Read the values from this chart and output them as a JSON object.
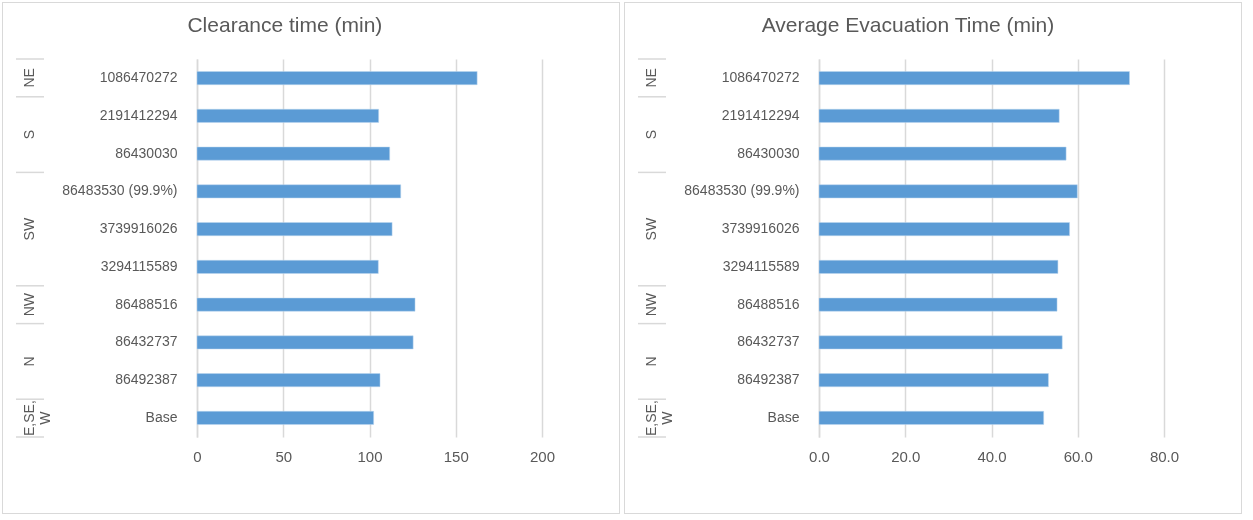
{
  "chart_data": [
    {
      "type": "bar",
      "orientation": "horizontal",
      "title": "Clearance time (min)",
      "categories": [
        "1086470272",
        "2191412294",
        "86430030",
        "86483530 (99.9%)",
        "3739916026",
        "3294115589",
        "86488516",
        "86432737",
        "86492387",
        "Base"
      ],
      "values": [
        162.4,
        105.3,
        111.7,
        118.1,
        113.1,
        105.1,
        126.4,
        125.3,
        106.1,
        102.4
      ],
      "color": "#5b9bd5",
      "xlim": [
        0,
        200
      ],
      "xticks": [
        0,
        50,
        100,
        150,
        200
      ],
      "grid": "x",
      "annotations": [
        "NE",
        "S",
        "SW",
        "NW",
        "N",
        "E,SE, W"
      ]
    },
    {
      "type": "bar",
      "orientation": "horizontal",
      "title": "Average Evacuation Time (min)",
      "categories": [
        "1086470272",
        "2191412294",
        "86430030",
        "86483530 (99.9%)",
        "3739916026",
        "3294115589",
        "86488516",
        "86432737",
        "86492387",
        "Base"
      ],
      "values": [
        72.0,
        55.7,
        57.3,
        59.9,
        58.1,
        55.4,
        55.2,
        56.4,
        53.2,
        52.1
      ],
      "color": "#5b9bd5",
      "xlim": [
        0,
        80
      ],
      "xticks": [
        {
          "value": 0,
          "label": "0.0"
        },
        {
          "value": 20,
          "label": "20.0"
        },
        {
          "value": 40,
          "label": "40.0"
        },
        {
          "value": 60,
          "label": "60.0"
        },
        {
          "value": 80,
          "label": "80.0"
        }
      ],
      "grid": "x",
      "annotations": [
        "NE",
        "S",
        "SW",
        "NW",
        "N",
        "E,SE, W"
      ]
    }
  ]
}
